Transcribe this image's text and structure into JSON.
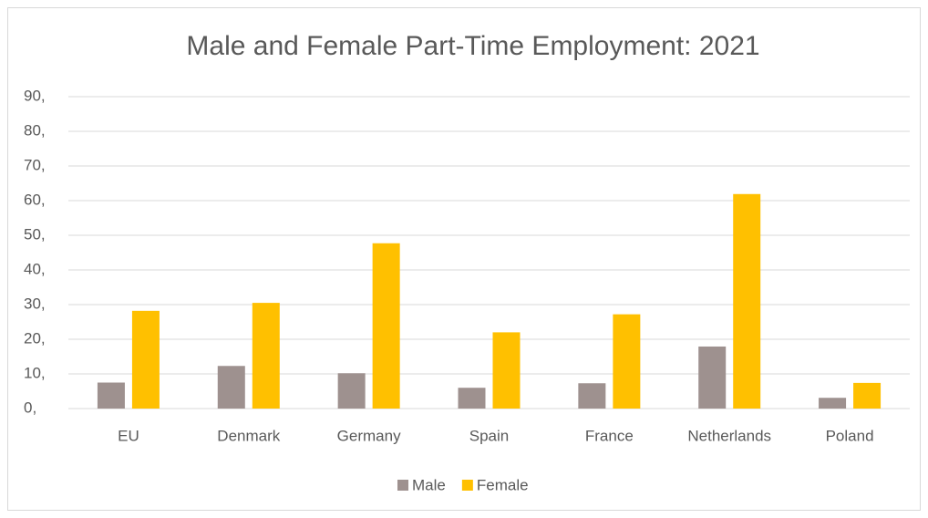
{
  "chart_data": {
    "type": "bar",
    "title": "Male and Female Part-Time Employment: 2021",
    "categories": [
      "EU",
      "Denmark",
      "Germany",
      "Spain",
      "France",
      "Netherlands",
      "Poland"
    ],
    "series": [
      {
        "name": "Male",
        "color": "#9e918f",
        "values": [
          7.5,
          12.3,
          10.2,
          6.0,
          7.3,
          17.9,
          3.1
        ]
      },
      {
        "name": "Female",
        "color": "#ffc000",
        "values": [
          28.2,
          30.5,
          47.7,
          22.0,
          27.2,
          61.9,
          7.4
        ]
      }
    ],
    "ylim": [
      0,
      90
    ],
    "yticks": [
      {
        "value": 0,
        "label": "0,"
      },
      {
        "value": 10,
        "label": "10,"
      },
      {
        "value": 20,
        "label": "20,"
      },
      {
        "value": 30,
        "label": "30,"
      },
      {
        "value": 40,
        "label": "40,"
      },
      {
        "value": 50,
        "label": "50,"
      },
      {
        "value": 60,
        "label": "60,"
      },
      {
        "value": 70,
        "label": "70,"
      },
      {
        "value": 80,
        "label": "80,"
      },
      {
        "value": 90,
        "label": "90,"
      }
    ],
    "grid": true,
    "legend": "bottom"
  }
}
